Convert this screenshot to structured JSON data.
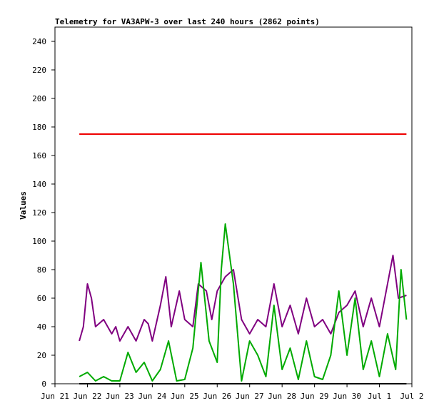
{
  "chart_data": {
    "type": "line",
    "title": "Telemetry for VA3APW-3 over last 240 hours (2862 points)",
    "xlabel": "",
    "ylabel": "Values",
    "xlim": [
      "Jun 21",
      "Jul 2"
    ],
    "ylim": [
      0,
      250
    ],
    "grid": false,
    "x_ticks": [
      "Jun 21",
      "Jun 22",
      "Jun 23",
      "Jun 24",
      "Jun 25",
      "Jun 26",
      "Jun 27",
      "Jun 28",
      "Jun 29",
      "Jun 30",
      "Jul 1",
      "Jul 2"
    ],
    "y_ticks": [
      0,
      20,
      40,
      60,
      80,
      100,
      120,
      140,
      160,
      180,
      200,
      220,
      240
    ],
    "series": [
      {
        "color": "#ee0000",
        "points": [
          [
            "Jun 21 18:00",
            175
          ],
          [
            "Jul 1 12:00",
            175
          ],
          [
            "Jul 1 20:00",
            175
          ]
        ]
      },
      {
        "color": "#800080",
        "points": [
          [
            "Jun 21 18:00",
            30
          ],
          [
            "Jun 21 21:00",
            40
          ],
          [
            "Jun 22 00:00",
            70
          ],
          [
            "Jun 22 03:00",
            60
          ],
          [
            "Jun 22 06:00",
            40
          ],
          [
            "Jun 22 12:00",
            45
          ],
          [
            "Jun 22 18:00",
            35
          ],
          [
            "Jun 22 21:00",
            40
          ],
          [
            "Jun 23 00:00",
            30
          ],
          [
            "Jun 23 06:00",
            40
          ],
          [
            "Jun 23 12:00",
            30
          ],
          [
            "Jun 23 18:00",
            45
          ],
          [
            "Jun 23 21:00",
            42
          ],
          [
            "Jun 24 00:00",
            30
          ],
          [
            "Jun 24 06:00",
            55
          ],
          [
            "Jun 24 10:00",
            75
          ],
          [
            "Jun 24 14:00",
            40
          ],
          [
            "Jun 24 20:00",
            65
          ],
          [
            "Jun 25 00:00",
            45
          ],
          [
            "Jun 25 06:00",
            40
          ],
          [
            "Jun 25 10:00",
            70
          ],
          [
            "Jun 25 16:00",
            65
          ],
          [
            "Jun 25 20:00",
            45
          ],
          [
            "Jun 26 00:00",
            65
          ],
          [
            "Jun 26 06:00",
            75
          ],
          [
            "Jun 26 12:00",
            80
          ],
          [
            "Jun 26 18:00",
            45
          ],
          [
            "Jun 27 00:00",
            35
          ],
          [
            "Jun 27 06:00",
            45
          ],
          [
            "Jun 27 12:00",
            40
          ],
          [
            "Jun 27 18:00",
            70
          ],
          [
            "Jun 28 00:00",
            40
          ],
          [
            "Jun 28 06:00",
            55
          ],
          [
            "Jun 28 12:00",
            35
          ],
          [
            "Jun 28 18:00",
            60
          ],
          [
            "Jun 29 00:00",
            40
          ],
          [
            "Jun 29 06:00",
            45
          ],
          [
            "Jun 29 12:00",
            35
          ],
          [
            "Jun 29 18:00",
            50
          ],
          [
            "Jun 30 00:00",
            55
          ],
          [
            "Jun 30 06:00",
            65
          ],
          [
            "Jun 30 12:00",
            40
          ],
          [
            "Jun 30 18:00",
            60
          ],
          [
            "Jul 1 00:00",
            40
          ],
          [
            "Jul 1 06:00",
            70
          ],
          [
            "Jul 1 10:00",
            90
          ],
          [
            "Jul 1 14:00",
            60
          ],
          [
            "Jul 1 20:00",
            62
          ]
        ]
      },
      {
        "color": "#00aa00",
        "points": [
          [
            "Jun 21 18:00",
            5
          ],
          [
            "Jun 22 00:00",
            8
          ],
          [
            "Jun 22 06:00",
            2
          ],
          [
            "Jun 22 12:00",
            5
          ],
          [
            "Jun 22 18:00",
            2
          ],
          [
            "Jun 23 00:00",
            2
          ],
          [
            "Jun 23 06:00",
            22
          ],
          [
            "Jun 23 12:00",
            8
          ],
          [
            "Jun 23 18:00",
            15
          ],
          [
            "Jun 24 00:00",
            2
          ],
          [
            "Jun 24 06:00",
            10
          ],
          [
            "Jun 24 12:00",
            30
          ],
          [
            "Jun 24 18:00",
            2
          ],
          [
            "Jun 25 00:00",
            3
          ],
          [
            "Jun 25 06:00",
            25
          ],
          [
            "Jun 25 12:00",
            85
          ],
          [
            "Jun 25 18:00",
            30
          ],
          [
            "Jun 26 00:00",
            15
          ],
          [
            "Jun 26 03:00",
            80
          ],
          [
            "Jun 26 06:00",
            112
          ],
          [
            "Jun 26 12:00",
            70
          ],
          [
            "Jun 26 18:00",
            2
          ],
          [
            "Jun 27 00:00",
            30
          ],
          [
            "Jun 27 06:00",
            20
          ],
          [
            "Jun 27 12:00",
            5
          ],
          [
            "Jun 27 18:00",
            55
          ],
          [
            "Jun 28 00:00",
            10
          ],
          [
            "Jun 28 06:00",
            25
          ],
          [
            "Jun 28 12:00",
            3
          ],
          [
            "Jun 28 18:00",
            30
          ],
          [
            "Jun 29 00:00",
            5
          ],
          [
            "Jun 29 06:00",
            3
          ],
          [
            "Jun 29 12:00",
            20
          ],
          [
            "Jun 29 18:00",
            65
          ],
          [
            "Jun 30 00:00",
            20
          ],
          [
            "Jun 30 06:00",
            60
          ],
          [
            "Jun 30 12:00",
            10
          ],
          [
            "Jun 30 18:00",
            30
          ],
          [
            "Jul 1 00:00",
            5
          ],
          [
            "Jul 1 06:00",
            35
          ],
          [
            "Jul 1 12:00",
            10
          ],
          [
            "Jul 1 16:00",
            80
          ],
          [
            "Jul 1 20:00",
            45
          ]
        ]
      },
      {
        "color": "#000000",
        "points": [
          [
            "Jun 21 18:00",
            0
          ],
          [
            "Jul 1 20:00",
            0
          ]
        ]
      }
    ]
  }
}
